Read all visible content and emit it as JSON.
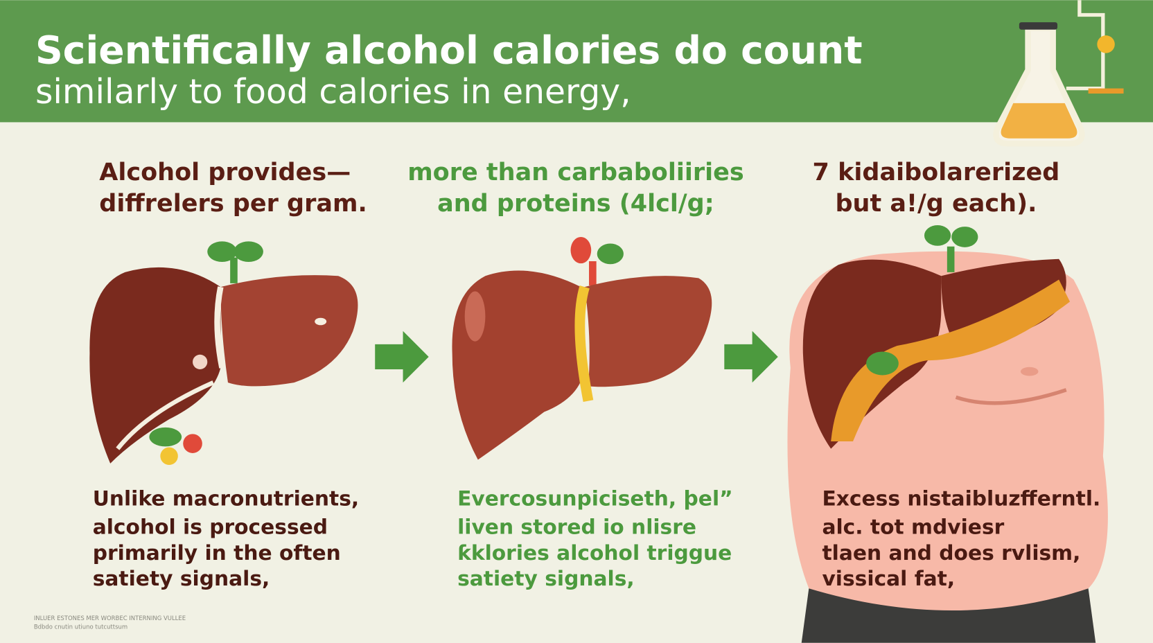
{
  "header": {
    "title": "Scientifically alcohol calories do count",
    "subtitle": "similarly to food calories in energy,"
  },
  "columns": [
    {
      "heading": [
        "Alcohol provides—",
        "diffrelers per gram."
      ],
      "body": [
        "Unlike macronutrients,",
        "alcohol is processed",
        "primarily in the often",
        "satiety signals,"
      ]
    },
    {
      "heading": [
        "more than carbaboliiries",
        "and proteins (4lcl/g;"
      ],
      "body": [
        "Evercosunpiciseth, þel”",
        "liven stored io nlisre",
        "ƙklories alcohol triggue",
        "satiety signals,"
      ]
    },
    {
      "heading": [
        "7 kidaibolarerized",
        "but a!/g each)."
      ],
      "body": [
        "Excess nistaibluzfferntl.",
        "alc. tot mdviesr",
        "tlaen and does rvlism,",
        "vissical fat,"
      ]
    }
  ],
  "footer": [
    "INLUER ESTONES MER WORBEC INTERNING VULLEE",
    "Bdbdo cnutin utiuno tutcuttsum"
  ]
}
